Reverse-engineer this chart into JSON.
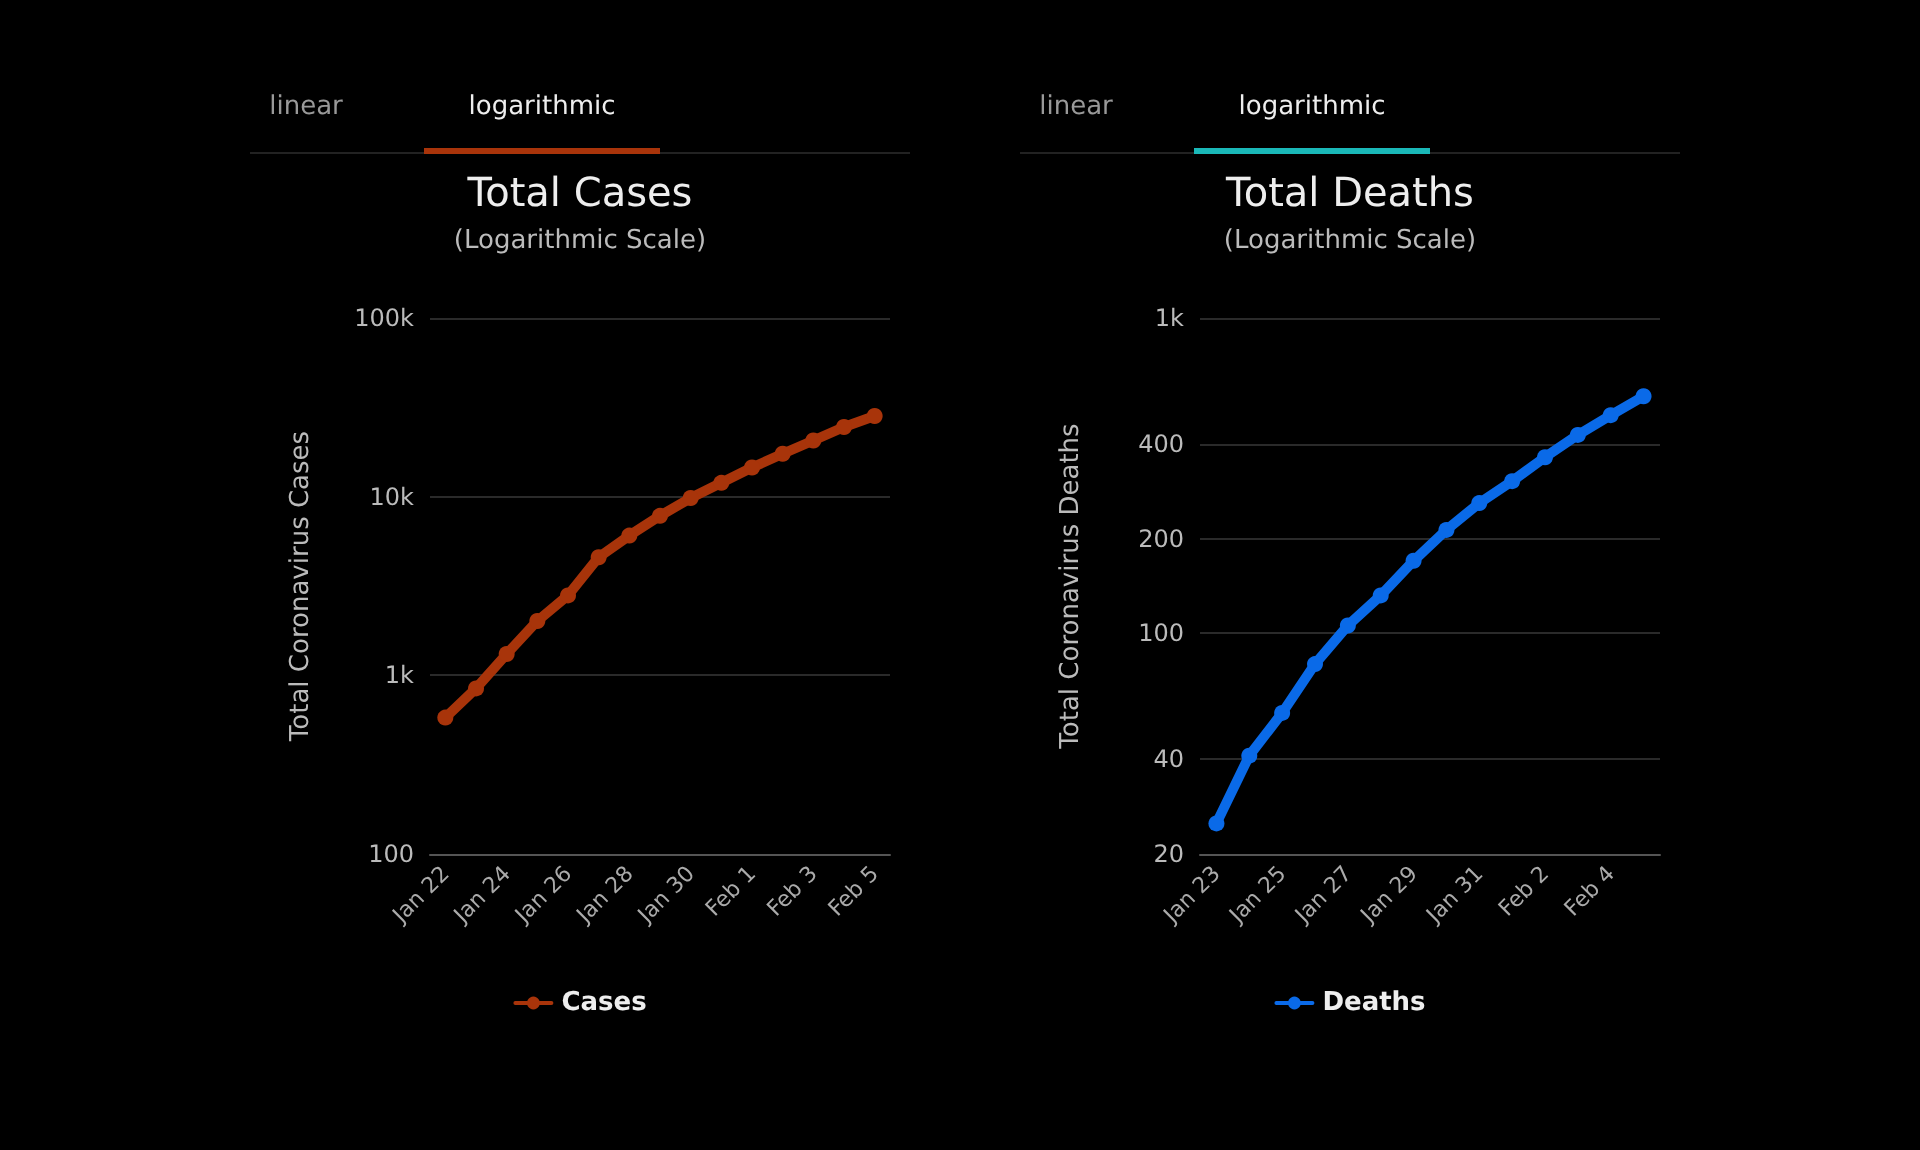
{
  "chart_data": [
    {
      "type": "line",
      "title": "Total Cases",
      "subtitle": "(Logarithmic Scale)",
      "ylabel": "Total Coronavirus Cases",
      "annotations": [
        "linear",
        "logarithmic"
      ],
      "categories": [
        "Jan 22",
        null,
        "Jan 24",
        null,
        "Jan 26",
        null,
        "Jan 28",
        null,
        "Jan 30",
        null,
        "Feb 1",
        null,
        "Feb 3",
        null,
        "Feb 5"
      ],
      "series": [
        {
          "name": "Cases",
          "color": "#a8340a",
          "values": [
            580,
            845,
            1317,
            2015,
            2800,
            4581,
            6058,
            7813,
            9823,
            11950,
            14553,
            17391,
            20630,
            24545,
            28266
          ]
        }
      ],
      "log": true,
      "ylim": [
        100,
        100000
      ],
      "yticks": [
        100,
        {
          "value": 1000,
          "label": "1k"
        },
        {
          "value": 10000,
          "label": "10k"
        },
        {
          "value": 100000,
          "label": "100k"
        }
      ],
      "grid": "y",
      "legend": "bottom",
      "marker": "circle",
      "line_style": "solid"
    },
    {
      "type": "line",
      "title": "Total Deaths",
      "subtitle": "(Logarithmic Scale)",
      "ylabel": "Total Coronavirus Deaths",
      "annotations": [
        "linear",
        "logarithmic"
      ],
      "categories": [
        "Jan 23",
        null,
        "Jan 25",
        null,
        "Jan 27",
        null,
        "Jan 29",
        null,
        "Jan 31",
        null,
        "Feb 2",
        null,
        "Feb 4",
        null
      ],
      "series": [
        {
          "name": "Deaths",
          "color": "#0a6ae8",
          "values": [
            25,
            41,
            56,
            80,
            106,
            132,
            170,
            213,
            259,
            304,
            362,
            426,
            492,
            565
          ]
        }
      ],
      "log": true,
      "ylim": [
        20,
        1000
      ],
      "yticks": [
        20,
        40,
        100,
        200,
        400,
        {
          "value": 1000,
          "label": "1k"
        }
      ],
      "grid": "y",
      "legend": "bottom",
      "marker": "circle",
      "line_style": "solid"
    }
  ]
}
